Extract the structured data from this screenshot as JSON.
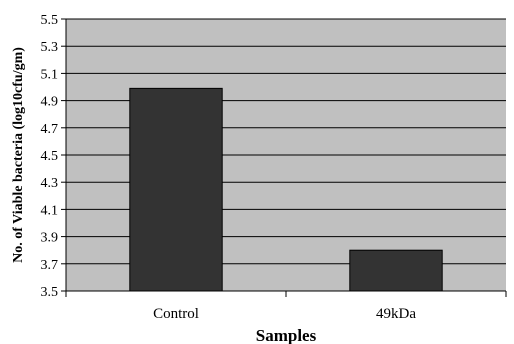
{
  "chart_data": {
    "type": "bar",
    "categories": [
      "Control",
      "49kDa"
    ],
    "values": [
      4.99,
      3.8
    ],
    "title": "",
    "xlabel": "Samples",
    "ylabel": "No. of Viable bacteria (log10cfu/gm)",
    "ylim": [
      3.5,
      5.5
    ],
    "yticks": [
      "3.5",
      "3.7",
      "3.9",
      "4.1",
      "4.3",
      "4.5",
      "4.7",
      "4.9",
      "5.1",
      "5.3",
      "5.5"
    ],
    "grid": true,
    "legend": "none",
    "colors": {
      "plot_background": "#c0c0c0",
      "bar": "#333333",
      "grid": "#000000"
    }
  }
}
